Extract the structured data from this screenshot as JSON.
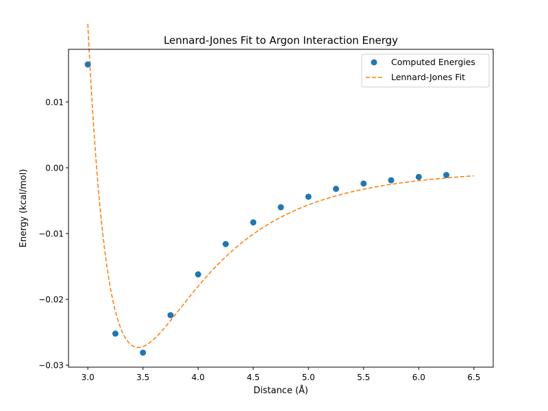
{
  "chart_data": {
    "type": "scatter",
    "title": "Lennard-Jones Fit to Argon Interaction Energy",
    "xlabel": "Distance (Å)",
    "ylabel": "Energy (kcal/mol)",
    "xlim": [
      2.825,
      6.675
    ],
    "ylim": [
      -0.0303,
      0.018
    ],
    "xticks": [
      3.0,
      3.5,
      4.0,
      4.5,
      5.0,
      5.5,
      6.0,
      6.5
    ],
    "xtick_labels": [
      "3.0",
      "3.5",
      "4.0",
      "4.5",
      "5.0",
      "5.5",
      "6.0",
      "6.5"
    ],
    "yticks": [
      -0.03,
      -0.02,
      -0.01,
      0.0,
      0.01
    ],
    "ytick_labels": [
      "−0.03",
      "−0.02",
      "−0.01",
      "0.00",
      "0.01"
    ],
    "grid": false,
    "legend_position": "upper right",
    "series": [
      {
        "name": "Computed Energies",
        "kind": "scatter",
        "color": "#1f77b4",
        "x": [
          3.0,
          3.25,
          3.5,
          3.75,
          4.0,
          4.25,
          4.5,
          4.75,
          5.0,
          5.25,
          5.5,
          5.75,
          6.0,
          6.25
        ],
        "y": [
          0.0157,
          -0.0252,
          -0.0281,
          -0.0224,
          -0.0162,
          -0.0116,
          -0.0083,
          -0.006,
          -0.0044,
          -0.0032,
          -0.0024,
          -0.0019,
          -0.0014,
          -0.0011
        ]
      },
      {
        "name": "Lennard-Jones Fit",
        "kind": "dashed-line",
        "color": "#ff7f0e",
        "model": "lennard-jones",
        "epsilon": 0.0273,
        "sigma": 3.08,
        "x_range": [
          3.0,
          6.5
        ]
      }
    ]
  }
}
